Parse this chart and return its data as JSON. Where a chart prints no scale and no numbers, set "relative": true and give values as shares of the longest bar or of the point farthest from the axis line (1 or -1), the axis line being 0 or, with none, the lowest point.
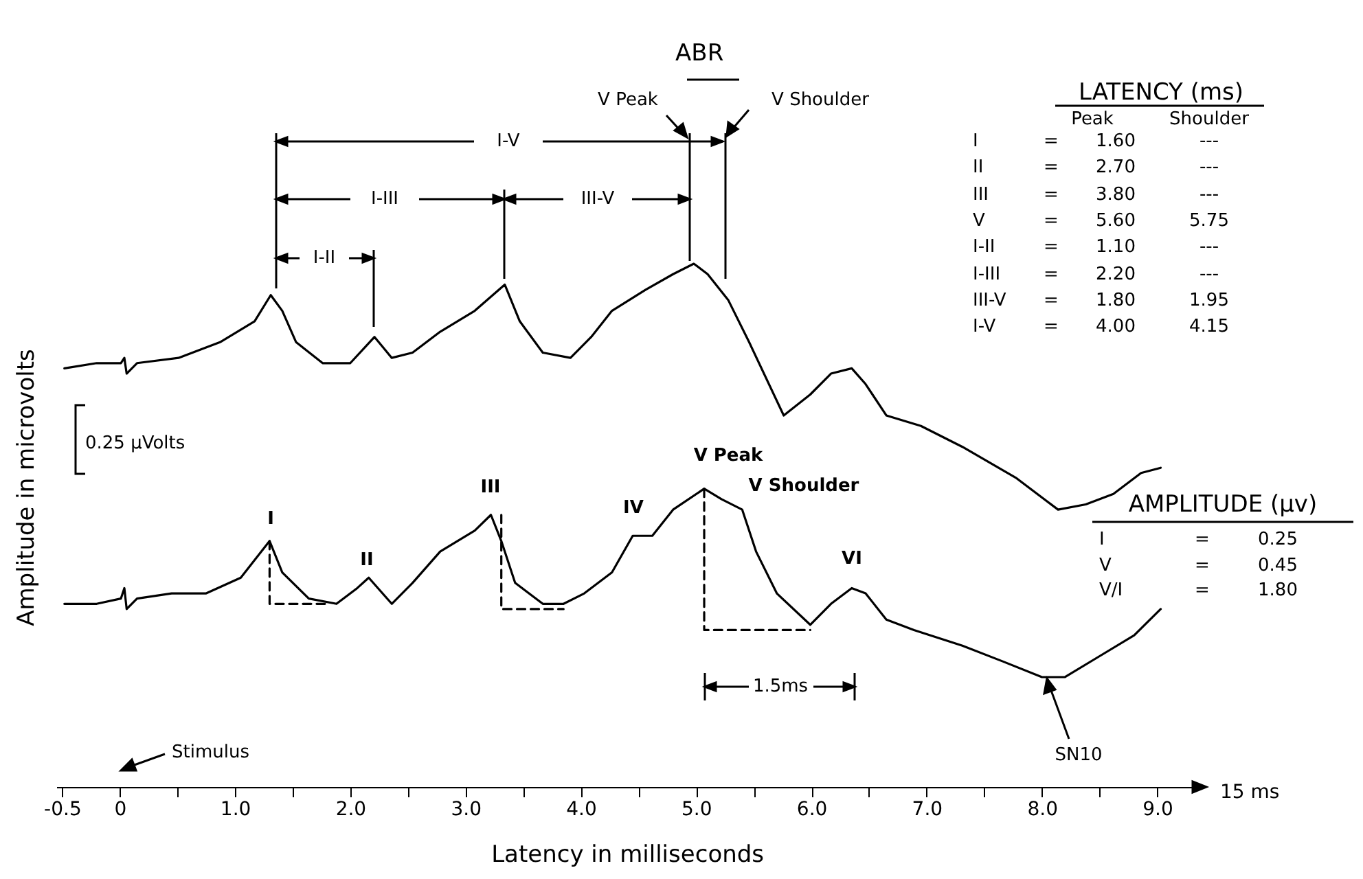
{
  "chart_data": {
    "type": "line",
    "title": "ABR",
    "xlabel": "Latency in milliseconds",
    "ylabel": "Amplitude in microvolts",
    "relative": true,
    "grid": false,
    "xlim": [
      -0.55,
      9.35
    ],
    "xticks": [
      -0.5,
      0,
      {
        "value": 0.5,
        "label": null
      },
      {
        "value": 1,
        "label": "1.0"
      },
      {
        "value": 1.5,
        "label": null
      },
      {
        "value": 2,
        "label": "2.0"
      },
      {
        "value": 2.5,
        "label": null
      },
      {
        "value": 3,
        "label": "3.0"
      },
      {
        "value": 3.5,
        "label": null
      },
      {
        "value": 4,
        "label": "4.0"
      },
      {
        "value": 4.5,
        "label": null
      },
      {
        "value": 5,
        "label": "5.0"
      },
      {
        "value": 5.5,
        "label": null
      },
      {
        "value": 6,
        "label": "6.0"
      },
      {
        "value": 6.5,
        "label": null
      },
      {
        "value": 7,
        "label": "7.0"
      },
      {
        "value": 7.5,
        "label": null
      },
      {
        "value": 8,
        "label": "8.0"
      },
      {
        "value": 8.5,
        "label": null
      },
      {
        "value": 9,
        "label": "9.0"
      }
    ],
    "series": [
      {
        "color": "#000000",
        "x": [
          -0.48,
          -0.2,
          0.01,
          0.04,
          0.06,
          0.15,
          0.51,
          0.87,
          1.17,
          1.31,
          1.41,
          1.53,
          1.76,
          2.0,
          2.21,
          2.36,
          2.54,
          2.78,
          3.08,
          3.34,
          3.47,
          3.67,
          3.91,
          4.09,
          4.27,
          4.56,
          4.8,
          4.98,
          5.1,
          5.28,
          5.46,
          5.76,
          5.99,
          6.17,
          6.35,
          6.47,
          6.65,
          6.95,
          7.31,
          7.78,
          8.14,
          8.38,
          8.62,
          8.86,
          9.03
        ],
        "values": [
          0.8,
          0.81,
          0.81,
          0.82,
          0.79,
          0.81,
          0.82,
          0.85,
          0.89,
          0.94,
          0.91,
          0.85,
          0.81,
          0.81,
          0.86,
          0.82,
          0.83,
          0.87,
          0.91,
          0.96,
          0.89,
          0.83,
          0.82,
          0.86,
          0.91,
          0.95,
          0.98,
          1,
          0.98,
          0.93,
          0.85,
          0.71,
          0.75,
          0.79,
          0.8,
          0.77,
          0.71,
          0.69,
          0.65,
          0.59,
          0.53,
          0.54,
          0.56,
          0.6,
          0.61
        ]
      },
      {
        "color": "#000000",
        "x": [
          -0.48,
          -0.2,
          0.01,
          0.04,
          0.06,
          0.15,
          0.45,
          0.75,
          1.05,
          1.3,
          1.41,
          1.64,
          1.88,
          2.06,
          2.16,
          2.24,
          2.36,
          2.54,
          2.78,
          3.08,
          3.22,
          3.31,
          3.43,
          3.67,
          3.85,
          4.03,
          4.27,
          4.45,
          4.62,
          4.8,
          5.07,
          5.22,
          5.4,
          5.52,
          5.7,
          5.99,
          6.17,
          6.35,
          6.47,
          6.65,
          6.89,
          7.31,
          7.66,
          8.0,
          8.2,
          8.5,
          8.8,
          9.03
        ],
        "values": [
          0.35,
          0.35,
          0.36,
          0.38,
          0.34,
          0.36,
          0.37,
          0.37,
          0.4,
          0.47,
          0.41,
          0.36,
          0.35,
          0.38,
          0.4,
          0.38,
          0.35,
          0.39,
          0.45,
          0.49,
          0.52,
          0.47,
          0.39,
          0.35,
          0.35,
          0.37,
          0.41,
          0.48,
          0.48,
          0.53,
          0.57,
          0.55,
          0.53,
          0.45,
          0.37,
          0.31,
          0.35,
          0.38,
          0.37,
          0.32,
          0.3,
          0.27,
          0.24,
          0.21,
          0.21,
          0.25,
          0.29,
          0.34
        ]
      },
      {
        "color": "#000000",
        "line_style": "dashed",
        "x": [
          1.3,
          1.3,
          1.8
        ],
        "values": [
          0.47,
          0.35,
          0.35
        ]
      },
      {
        "color": "#000000",
        "line_style": "dashed",
        "x": [
          3.31,
          3.31,
          3.85
        ],
        "values": [
          0.52,
          0.34,
          0.34
        ]
      },
      {
        "color": "#000000",
        "line_style": "dashed",
        "x": [
          5.07,
          5.07,
          5.99
        ],
        "values": [
          0.57,
          0.3,
          0.3
        ]
      }
    ],
    "annotations": [
      "I-V",
      "I-III",
      "III-V",
      "I-II",
      "V Peak",
      "V Shoulder",
      "0.25 μVolts",
      "1.5ms",
      "Stimulus",
      "SN10",
      "15 ms",
      "LATENCY (ms)",
      "Peak",
      "Shoulder",
      "I",
      "=",
      "1.60",
      "---",
      "II",
      "=",
      "2.70",
      "---",
      "III",
      "=",
      "3.80",
      "---",
      "V",
      "=",
      "5.60",
      "5.75",
      "I-II",
      "=",
      "1.10",
      "---",
      "I-III",
      "=",
      "2.20",
      "---",
      "III-V",
      "=",
      "1.80",
      "1.95",
      "I-V",
      "=",
      "4.00",
      "4.15",
      "AMPLITUDE (μv)",
      "I",
      "=",
      "0.25",
      "V",
      "=",
      "0.45",
      "V/I",
      "=",
      "1.80",
      "I",
      "II",
      "III",
      "IV",
      "V Peak",
      "V Shoulder",
      "VI"
    ]
  }
}
